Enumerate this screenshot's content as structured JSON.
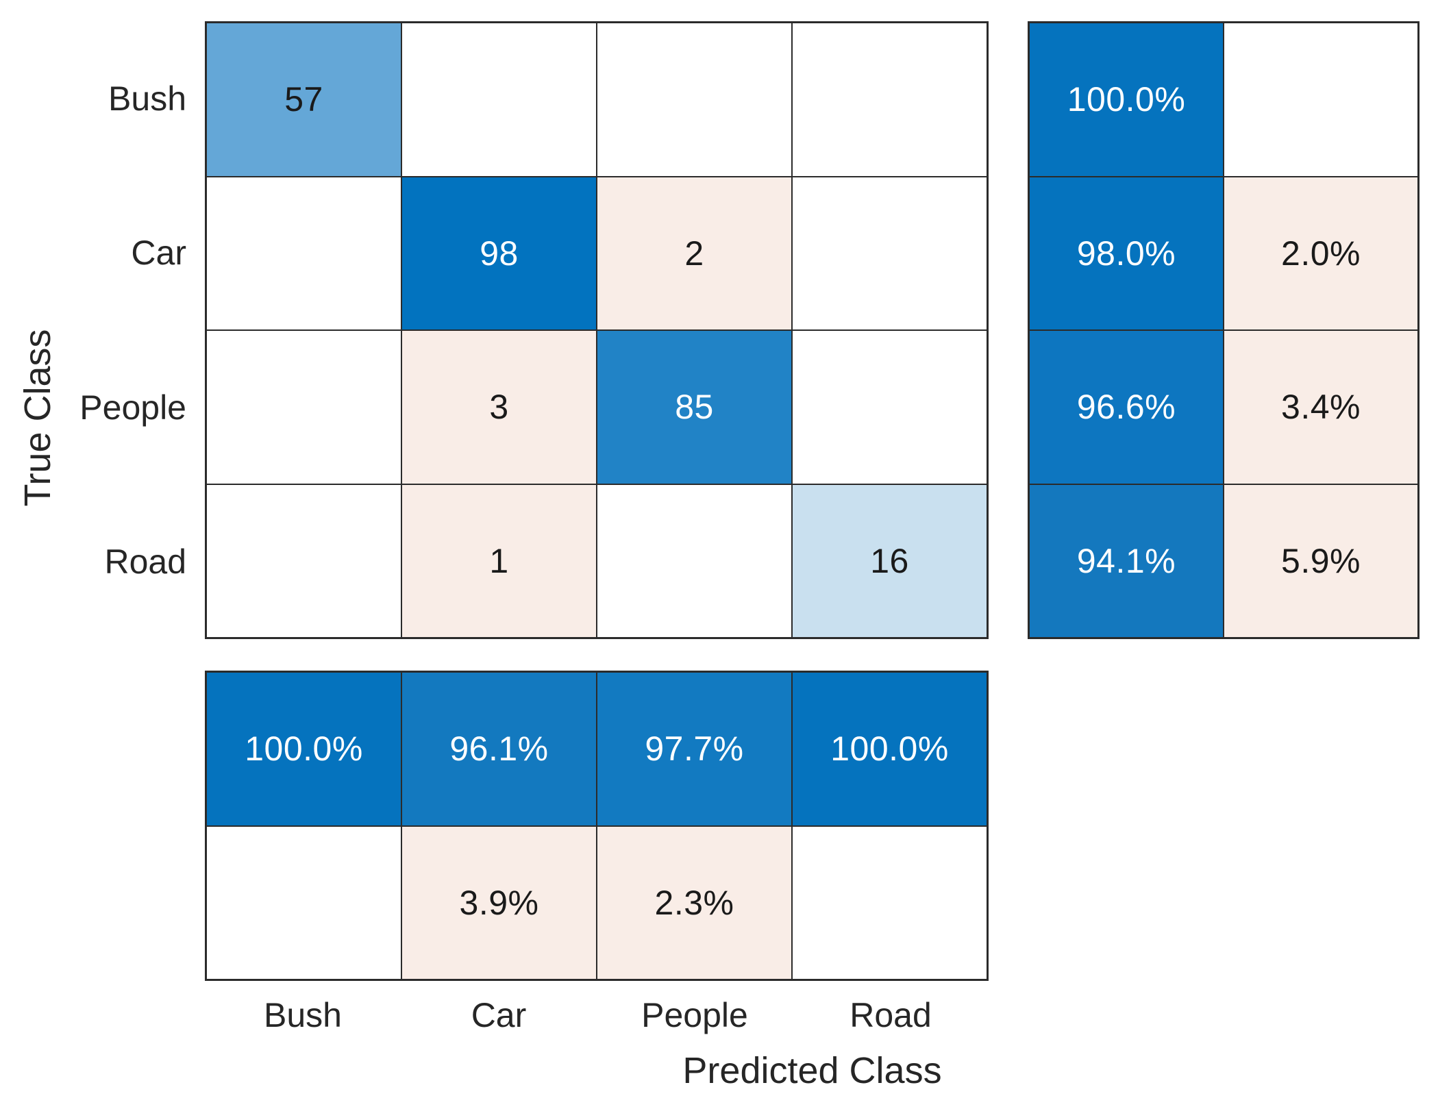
{
  "figure": {
    "background": "#ffffff",
    "grid_line_color": "#2b2b2b",
    "diagonal_color_full": "#0273BF",
    "offdiagonal_color_light": "#F9EDE7",
    "cell_text_dark": "#1a1a1a",
    "cell_text_light": "#ffffff"
  },
  "axes": {
    "x_label": "Predicted Class",
    "y_label": "True Class",
    "x_ticks": [
      "Bush",
      "Car",
      "People",
      "Road"
    ],
    "y_ticks": [
      "Bush",
      "Car",
      "People",
      "Road"
    ]
  },
  "chart_data": {
    "type": "heatmap",
    "subtype": "confusion-matrix",
    "title": "",
    "classes": [
      "Bush",
      "Car",
      "People",
      "Road"
    ],
    "matrix_rows_true_by_predicted": [
      [
        57,
        0,
        0,
        0
      ],
      [
        0,
        98,
        2,
        0
      ],
      [
        0,
        3,
        85,
        0
      ],
      [
        0,
        1,
        0,
        16
      ]
    ],
    "row_summary_percent": {
      "correct": [
        100.0,
        98.0,
        96.6,
        94.1
      ],
      "incorrect": [
        null,
        2.0,
        3.4,
        5.9
      ]
    },
    "column_summary_percent": {
      "correct": [
        100.0,
        96.1,
        97.7,
        100.0
      ],
      "incorrect": [
        null,
        3.9,
        2.3,
        null
      ]
    },
    "layout_hints": {
      "row_summary_position": "right",
      "column_summary_position": "bottom",
      "grid_on": true,
      "legend": "none"
    }
  },
  "grids": {
    "main": {
      "columns": 4,
      "cells": [
        {
          "text": "57",
          "bg": "#64A7D7",
          "fg": "#1a1a1a"
        },
        {
          "text": "",
          "bg": "#ffffff",
          "fg": "#1a1a1a"
        },
        {
          "text": "",
          "bg": "#ffffff",
          "fg": "#1a1a1a"
        },
        {
          "text": "",
          "bg": "#ffffff",
          "fg": "#1a1a1a"
        },
        {
          "text": "",
          "bg": "#ffffff",
          "fg": "#1a1a1a"
        },
        {
          "text": "98",
          "bg": "#0273BF",
          "fg": "#ffffff"
        },
        {
          "text": "2",
          "bg": "#F9EDE7",
          "fg": "#1a1a1a"
        },
        {
          "text": "",
          "bg": "#ffffff",
          "fg": "#1a1a1a"
        },
        {
          "text": "",
          "bg": "#ffffff",
          "fg": "#1a1a1a"
        },
        {
          "text": "3",
          "bg": "#F9EDE7",
          "fg": "#1a1a1a"
        },
        {
          "text": "85",
          "bg": "#2183C6",
          "fg": "#ffffff"
        },
        {
          "text": "",
          "bg": "#ffffff",
          "fg": "#1a1a1a"
        },
        {
          "text": "",
          "bg": "#ffffff",
          "fg": "#1a1a1a"
        },
        {
          "text": "1",
          "bg": "#F9EDE7",
          "fg": "#1a1a1a"
        },
        {
          "text": "",
          "bg": "#ffffff",
          "fg": "#1a1a1a"
        },
        {
          "text": "16",
          "bg": "#C9E0EF",
          "fg": "#1a1a1a"
        }
      ]
    },
    "row_summary": {
      "columns": 2,
      "cells": [
        {
          "text": "100.0%",
          "bg": "#0573BE",
          "fg": "#ffffff"
        },
        {
          "text": "",
          "bg": "#ffffff",
          "fg": "#1a1a1a"
        },
        {
          "text": "98.0%",
          "bg": "#0573BE",
          "fg": "#ffffff"
        },
        {
          "text": "2.0%",
          "bg": "#F9EDE7",
          "fg": "#1a1a1a"
        },
        {
          "text": "96.6%",
          "bg": "#0D76C0",
          "fg": "#ffffff"
        },
        {
          "text": "3.4%",
          "bg": "#F9EDE7",
          "fg": "#1a1a1a"
        },
        {
          "text": "94.1%",
          "bg": "#1478BE",
          "fg": "#ffffff"
        },
        {
          "text": "5.9%",
          "bg": "#F9EDE7",
          "fg": "#1a1a1a"
        }
      ]
    },
    "col_summary": {
      "columns": 4,
      "cells": [
        {
          "text": "100.0%",
          "bg": "#0573BE",
          "fg": "#ffffff"
        },
        {
          "text": "96.1%",
          "bg": "#1379BF",
          "fg": "#ffffff"
        },
        {
          "text": "97.7%",
          "bg": "#127AC1",
          "fg": "#ffffff"
        },
        {
          "text": "100.0%",
          "bg": "#0573BE",
          "fg": "#ffffff"
        },
        {
          "text": "",
          "bg": "#ffffff",
          "fg": "#1a1a1a"
        },
        {
          "text": "3.9%",
          "bg": "#F9EDE7",
          "fg": "#1a1a1a"
        },
        {
          "text": "2.3%",
          "bg": "#F9EDE7",
          "fg": "#1a1a1a"
        },
        {
          "text": "",
          "bg": "#ffffff",
          "fg": "#1a1a1a"
        }
      ]
    }
  }
}
